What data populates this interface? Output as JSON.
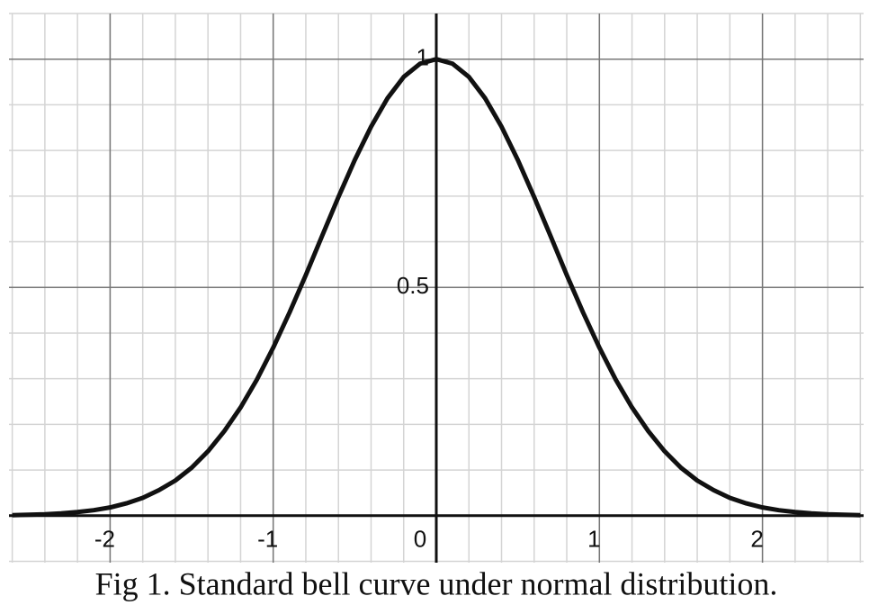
{
  "chart_data": {
    "type": "line",
    "title": "Fig 1. Standard bell curve under normal distribution.",
    "x": [
      -2.6,
      -2.5,
      -2.4,
      -2.3,
      -2.2,
      -2.1,
      -2.0,
      -1.9,
      -1.8,
      -1.7,
      -1.6,
      -1.5,
      -1.4,
      -1.3,
      -1.2,
      -1.1,
      -1.0,
      -0.9,
      -0.8,
      -0.7,
      -0.6,
      -0.5,
      -0.4,
      -0.3,
      -0.2,
      -0.1,
      0,
      0.1,
      0.2,
      0.3,
      0.4,
      0.5,
      0.6,
      0.7,
      0.8,
      0.9,
      1.0,
      1.1,
      1.2,
      1.3,
      1.4,
      1.5,
      1.6,
      1.7,
      1.8,
      1.9,
      2.0,
      2.1,
      2.2,
      2.3,
      2.4,
      2.5,
      2.6
    ],
    "series": [
      {
        "color": "#111111",
        "values": [
          0.001,
          0.002,
          0.003,
          0.005,
          0.008,
          0.012,
          0.018,
          0.027,
          0.039,
          0.056,
          0.077,
          0.105,
          0.141,
          0.185,
          0.237,
          0.298,
          0.368,
          0.445,
          0.527,
          0.613,
          0.698,
          0.779,
          0.852,
          0.914,
          0.961,
          0.99,
          1,
          0.99,
          0.961,
          0.914,
          0.852,
          0.779,
          0.698,
          0.613,
          0.527,
          0.445,
          0.368,
          0.298,
          0.237,
          0.185,
          0.141,
          0.105,
          0.077,
          0.056,
          0.039,
          0.027,
          0.018,
          0.012,
          0.008,
          0.005,
          0.003,
          0.002,
          0.001
        ]
      }
    ],
    "xlim": [
      -2.62,
      2.62
    ],
    "ylim": [
      -0.103,
      1.1
    ],
    "xticks": [
      -2,
      -1,
      0,
      1,
      2
    ],
    "yticks": [
      0.5,
      1
    ],
    "grid": true,
    "minor_divisions": 5
  }
}
